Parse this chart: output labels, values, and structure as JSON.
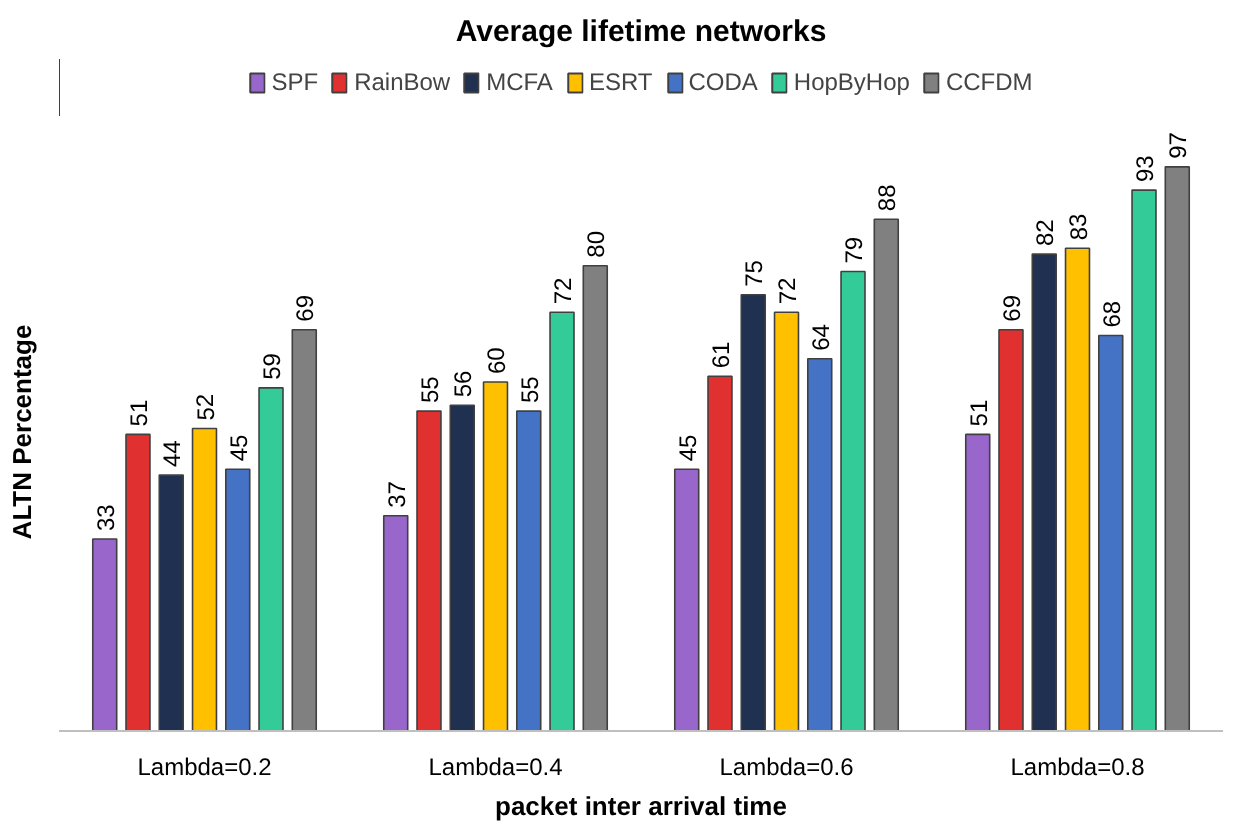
{
  "chart_data": {
    "type": "bar",
    "title": "Average lifetime networks",
    "xlabel": "packet inter arrival time",
    "ylabel": "ALTN Percentage",
    "categories": [
      "Lambda=0.2",
      "Lambda=0.4",
      "Lambda=0.6",
      "Lambda=0.8"
    ],
    "series": [
      {
        "name": "SPF",
        "color": "#9966cc",
        "values": [
          33,
          37,
          45,
          51
        ]
      },
      {
        "name": "RainBow",
        "color": "#e03030",
        "values": [
          51,
          55,
          61,
          69
        ]
      },
      {
        "name": "MCFA",
        "color": "#203050",
        "values": [
          44,
          56,
          75,
          82
        ]
      },
      {
        "name": "ESRT",
        "color": "#ffc000",
        "values": [
          52,
          60,
          72,
          83
        ]
      },
      {
        "name": "CODA",
        "color": "#4472c4",
        "values": [
          45,
          55,
          64,
          68
        ]
      },
      {
        "name": "HopByHop",
        "color": "#33cc99",
        "values": [
          59,
          72,
          79,
          93
        ]
      },
      {
        "name": "CCFDM",
        "color": "#808080",
        "values": [
          69,
          80,
          88,
          97
        ]
      }
    ],
    "tick_labels": "x",
    "data_labels": true,
    "legend": "top",
    "grid": false
  }
}
